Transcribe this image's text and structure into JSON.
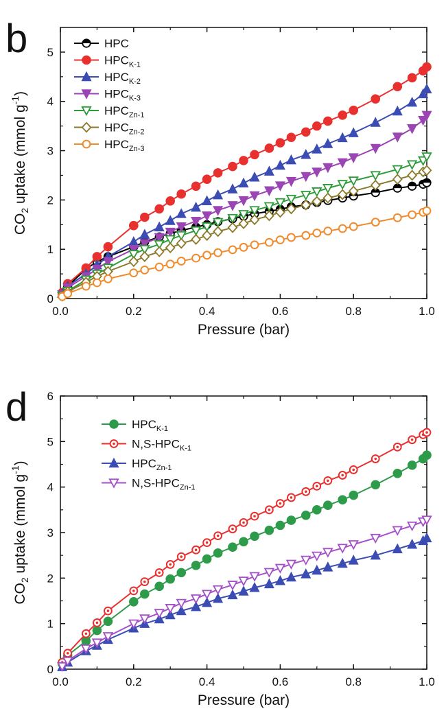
{
  "chart_data": [
    {
      "type": "line",
      "panel_label": "b",
      "xlabel": "Pressure (bar)",
      "ylabel": {
        "pre": "CO",
        "sub": "2",
        "mid": " uptake (mmol g",
        "sup": "-1",
        "post": ")"
      },
      "xlim": [
        0,
        1.0
      ],
      "ylim": [
        0,
        5.5
      ],
      "xticks": [
        "0.0",
        "0.2",
        "0.4",
        "0.6",
        "0.8",
        "1.0"
      ],
      "yticks": [
        "0",
        "1",
        "2",
        "3",
        "4",
        "5"
      ],
      "legend_position": "top-left",
      "x": [
        0.005,
        0.02,
        0.07,
        0.1,
        0.13,
        0.2,
        0.23,
        0.27,
        0.3,
        0.33,
        0.37,
        0.4,
        0.43,
        0.47,
        0.5,
        0.53,
        0.57,
        0.6,
        0.63,
        0.67,
        0.7,
        0.73,
        0.77,
        0.8,
        0.86,
        0.92,
        0.96,
        0.99,
        1.0
      ],
      "series": [
        {
          "name": "HPC",
          "sub": "",
          "color": "#000000",
          "marker": "circle-half",
          "values": [
            0.1,
            0.25,
            0.6,
            0.75,
            0.85,
            1.05,
            1.15,
            1.25,
            1.32,
            1.38,
            1.45,
            1.5,
            1.56,
            1.62,
            1.67,
            1.72,
            1.77,
            1.81,
            1.86,
            1.9,
            1.95,
            1.99,
            2.04,
            2.08,
            2.15,
            2.24,
            2.28,
            2.32,
            2.35
          ]
        },
        {
          "name": "HPC",
          "sub": "K-1",
          "color": "#e8302e",
          "marker": "circle-filled",
          "values": [
            0.12,
            0.3,
            0.62,
            0.85,
            1.05,
            1.48,
            1.65,
            1.82,
            1.98,
            2.12,
            2.28,
            2.42,
            2.55,
            2.68,
            2.8,
            2.92,
            3.05,
            3.16,
            3.27,
            3.38,
            3.5,
            3.6,
            3.72,
            3.82,
            4.05,
            4.3,
            4.48,
            4.62,
            4.7
          ]
        },
        {
          "name": "HPC",
          "sub": "K-2",
          "color": "#3b4db3",
          "marker": "triangle-up",
          "values": [
            0.1,
            0.25,
            0.5,
            0.68,
            0.85,
            1.15,
            1.3,
            1.45,
            1.58,
            1.72,
            1.85,
            1.98,
            2.1,
            2.22,
            2.34,
            2.46,
            2.58,
            2.7,
            2.81,
            2.92,
            3.03,
            3.14,
            3.26,
            3.36,
            3.57,
            3.8,
            3.98,
            4.15,
            4.25
          ]
        },
        {
          "name": "HPC",
          "sub": "K-3",
          "color": "#9b45b5",
          "marker": "triangle-down",
          "values": [
            0.08,
            0.22,
            0.45,
            0.6,
            0.75,
            1.0,
            1.12,
            1.24,
            1.35,
            1.46,
            1.57,
            1.68,
            1.79,
            1.89,
            1.99,
            2.09,
            2.19,
            2.29,
            2.38,
            2.48,
            2.57,
            2.66,
            2.76,
            2.86,
            3.05,
            3.28,
            3.45,
            3.62,
            3.72
          ]
        },
        {
          "name": "HPC",
          "sub": "Zn-1",
          "color": "#2e9b3a",
          "marker": "triangle-down-open",
          "values": [
            0.05,
            0.15,
            0.38,
            0.5,
            0.62,
            0.9,
            1.0,
            1.1,
            1.2,
            1.28,
            1.38,
            1.46,
            1.55,
            1.63,
            1.71,
            1.79,
            1.87,
            1.95,
            2.02,
            2.1,
            2.17,
            2.24,
            2.32,
            2.39,
            2.5,
            2.62,
            2.72,
            2.8,
            2.88
          ]
        },
        {
          "name": "HPC",
          "sub": "Zn-2",
          "color": "#8a7a2a",
          "marker": "diamond-open",
          "values": [
            0.05,
            0.14,
            0.33,
            0.45,
            0.55,
            0.75,
            0.85,
            0.95,
            1.03,
            1.12,
            1.2,
            1.28,
            1.36,
            1.44,
            1.52,
            1.6,
            1.68,
            1.75,
            1.82,
            1.9,
            1.97,
            2.04,
            2.11,
            2.18,
            2.3,
            2.42,
            2.5,
            2.57,
            2.6
          ]
        },
        {
          "name": "HPC",
          "sub": "Zn-3",
          "color": "#f08a2a",
          "marker": "circle-open",
          "values": [
            0.04,
            0.1,
            0.25,
            0.32,
            0.4,
            0.52,
            0.58,
            0.64,
            0.7,
            0.76,
            0.82,
            0.88,
            0.93,
            0.99,
            1.04,
            1.09,
            1.14,
            1.19,
            1.24,
            1.28,
            1.33,
            1.37,
            1.42,
            1.46,
            1.55,
            1.64,
            1.7,
            1.75,
            1.78
          ]
        }
      ]
    },
    {
      "type": "line",
      "panel_label": "d",
      "xlabel": "Pressure (bar)",
      "ylabel": {
        "pre": "CO",
        "sub": "2",
        "mid": " uptake (mmol g",
        "sup": "-1",
        "post": ")"
      },
      "xlim": [
        0,
        1.0
      ],
      "ylim": [
        0,
        6
      ],
      "xticks": [
        "0.0",
        "0.2",
        "0.4",
        "0.6",
        "0.8",
        "1.0"
      ],
      "yticks": [
        "0",
        "1",
        "2",
        "3",
        "4",
        "5",
        "6"
      ],
      "legend_position": "top-left",
      "x": [
        0.005,
        0.02,
        0.07,
        0.1,
        0.13,
        0.2,
        0.23,
        0.27,
        0.3,
        0.33,
        0.37,
        0.4,
        0.43,
        0.47,
        0.5,
        0.53,
        0.57,
        0.6,
        0.63,
        0.67,
        0.7,
        0.73,
        0.77,
        0.8,
        0.86,
        0.92,
        0.96,
        0.99,
        1.0
      ],
      "series": [
        {
          "name": "HPC",
          "sub": "K-1",
          "color": "#2e9b4a",
          "marker": "circle-filled",
          "values": [
            0.12,
            0.3,
            0.62,
            0.85,
            1.05,
            1.48,
            1.65,
            1.82,
            1.98,
            2.12,
            2.28,
            2.42,
            2.55,
            2.68,
            2.8,
            2.92,
            3.05,
            3.16,
            3.27,
            3.38,
            3.5,
            3.6,
            3.72,
            3.82,
            4.05,
            4.3,
            4.48,
            4.62,
            4.7
          ]
        },
        {
          "name": "N,S-HPC",
          "sub": "K-1",
          "color": "#e8302e",
          "marker": "circle-dot",
          "values": [
            0.15,
            0.35,
            0.78,
            1.02,
            1.28,
            1.72,
            1.92,
            2.12,
            2.3,
            2.47,
            2.62,
            2.78,
            2.93,
            3.08,
            3.22,
            3.36,
            3.5,
            3.64,
            3.77,
            3.9,
            4.02,
            4.14,
            4.26,
            4.38,
            4.62,
            4.88,
            5.04,
            5.15,
            5.2
          ]
        },
        {
          "name": "HPC",
          "sub": "Zn-1",
          "color": "#3b4db3",
          "marker": "triangle-up",
          "values": [
            0.05,
            0.15,
            0.4,
            0.52,
            0.65,
            0.9,
            1.0,
            1.1,
            1.19,
            1.28,
            1.37,
            1.46,
            1.55,
            1.63,
            1.71,
            1.79,
            1.87,
            1.94,
            2.02,
            2.09,
            2.17,
            2.24,
            2.32,
            2.39,
            2.5,
            2.64,
            2.74,
            2.82,
            2.88
          ]
        },
        {
          "name": "N,S-HPC",
          "sub": "Zn-1",
          "color": "#a550c8",
          "marker": "triangle-down-open",
          "values": [
            0.06,
            0.18,
            0.45,
            0.58,
            0.72,
            1.0,
            1.11,
            1.23,
            1.34,
            1.45,
            1.55,
            1.65,
            1.75,
            1.85,
            1.94,
            2.04,
            2.13,
            2.22,
            2.31,
            2.4,
            2.49,
            2.57,
            2.66,
            2.74,
            2.88,
            3.05,
            3.15,
            3.24,
            3.28
          ]
        }
      ]
    }
  ]
}
